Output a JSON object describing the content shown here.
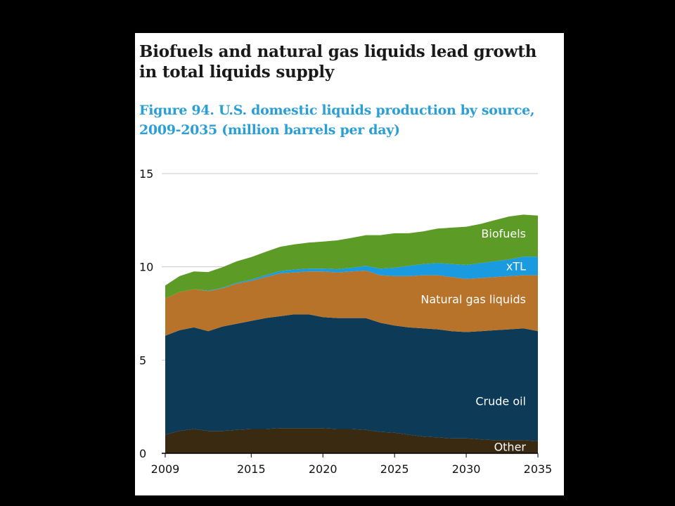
{
  "headline": "Biofuels and natural gas liquids lead growth in total liquids supply",
  "figure_title": "Figure 94. U.S. domestic liquids production by source, 2009-2035 (million barrels per day)",
  "colors": {
    "other": "#3b2a12",
    "crude_oil": "#0d3a56",
    "natural_gas_liquids": "#b8732a",
    "xtl": "#1a9be0",
    "biofuels": "#5d9b27",
    "gridline": "#c8c8c8",
    "axis": "#000000"
  },
  "chart_data": {
    "type": "area",
    "stacked": true,
    "title": "Figure 94. U.S. domestic liquids production by source, 2009-2035 (million barrels per day)",
    "xlabel": "",
    "ylabel": "",
    "xlim": [
      2009,
      2035
    ],
    "ylim": [
      0,
      15
    ],
    "x_ticks": [
      "2009",
      "2015",
      "2020",
      "2025",
      "2030",
      "2035"
    ],
    "y_ticks": [
      "0",
      "5",
      "10",
      "15"
    ],
    "grid": "horizontal",
    "x": [
      2009,
      2010,
      2011,
      2012,
      2013,
      2014,
      2015,
      2016,
      2017,
      2018,
      2019,
      2020,
      2021,
      2022,
      2023,
      2024,
      2025,
      2026,
      2027,
      2028,
      2029,
      2030,
      2031,
      2032,
      2033,
      2034,
      2035
    ],
    "series": [
      {
        "name": "Other",
        "key": "other",
        "values": [
          1.0,
          1.2,
          1.3,
          1.2,
          1.2,
          1.25,
          1.3,
          1.3,
          1.35,
          1.35,
          1.35,
          1.35,
          1.3,
          1.3,
          1.25,
          1.15,
          1.1,
          1.0,
          0.9,
          0.85,
          0.8,
          0.8,
          0.75,
          0.7,
          0.7,
          0.7,
          0.65
        ]
      },
      {
        "name": "Crude oil",
        "key": "crude_oil",
        "values": [
          5.3,
          5.4,
          5.45,
          5.35,
          5.6,
          5.7,
          5.8,
          5.95,
          6.0,
          6.1,
          6.1,
          5.95,
          5.95,
          5.95,
          6.0,
          5.85,
          5.75,
          5.75,
          5.8,
          5.8,
          5.75,
          5.7,
          5.8,
          5.9,
          5.95,
          6.0,
          5.9
        ]
      },
      {
        "name": "Natural gas liquids",
        "key": "natural_gas_liquids",
        "values": [
          2.0,
          2.05,
          2.05,
          2.15,
          2.05,
          2.15,
          2.15,
          2.2,
          2.3,
          2.25,
          2.3,
          2.45,
          2.45,
          2.5,
          2.55,
          2.55,
          2.65,
          2.75,
          2.85,
          2.9,
          2.9,
          2.85,
          2.85,
          2.85,
          2.85,
          2.85,
          3.0
        ]
      },
      {
        "name": "xTL",
        "key": "xtl",
        "values": [
          0.0,
          0.0,
          0.0,
          0.02,
          0.03,
          0.05,
          0.07,
          0.1,
          0.12,
          0.15,
          0.15,
          0.15,
          0.17,
          0.2,
          0.25,
          0.35,
          0.45,
          0.55,
          0.6,
          0.65,
          0.7,
          0.75,
          0.8,
          0.85,
          0.9,
          1.0,
          1.0
        ]
      },
      {
        "name": "Biofuels",
        "key": "biofuels",
        "values": [
          0.7,
          0.85,
          0.95,
          1.0,
          1.1,
          1.15,
          1.2,
          1.25,
          1.3,
          1.35,
          1.4,
          1.45,
          1.55,
          1.6,
          1.65,
          1.8,
          1.85,
          1.75,
          1.75,
          1.85,
          1.95,
          2.05,
          2.1,
          2.2,
          2.3,
          2.25,
          2.2
        ]
      }
    ],
    "annotations": [
      {
        "text": "Biofuels",
        "series": "biofuels"
      },
      {
        "text": "xTL",
        "series": "xtl"
      },
      {
        "text": "Natural gas liquids",
        "series": "natural_gas_liquids"
      },
      {
        "text": "Crude oil",
        "series": "crude_oil"
      },
      {
        "text": "Other",
        "series": "other"
      }
    ]
  }
}
